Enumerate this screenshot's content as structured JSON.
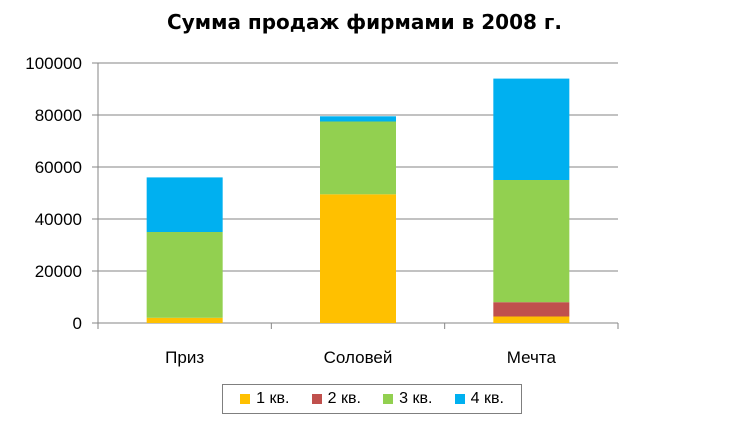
{
  "chart_data": {
    "type": "bar",
    "stacked": true,
    "title": "Сумма продаж фирмами в 2008 г.",
    "xlabel": "",
    "ylabel": "",
    "categories": [
      "Приз",
      "Соловей",
      "Мечта"
    ],
    "ylim": [
      0,
      100000
    ],
    "yticks": [
      0,
      20000,
      40000,
      60000,
      80000,
      100000
    ],
    "ytick_labels": [
      "0",
      "20000",
      "40000",
      "60000",
      "80000",
      "100000"
    ],
    "grid": true,
    "legend_position": "bottom",
    "series": [
      {
        "name": "1 кв.",
        "color": "#FFC000",
        "values": [
          2000,
          49500,
          2500
        ]
      },
      {
        "name": "2 кв.",
        "color": "#C0504D",
        "values": [
          0,
          0,
          5500
        ]
      },
      {
        "name": "3 кв.",
        "color": "#92D050",
        "values": [
          33000,
          28000,
          47000
        ]
      },
      {
        "name": "4 кв.",
        "color": "#00B0F0",
        "values": [
          21000,
          2000,
          39000
        ]
      }
    ]
  }
}
